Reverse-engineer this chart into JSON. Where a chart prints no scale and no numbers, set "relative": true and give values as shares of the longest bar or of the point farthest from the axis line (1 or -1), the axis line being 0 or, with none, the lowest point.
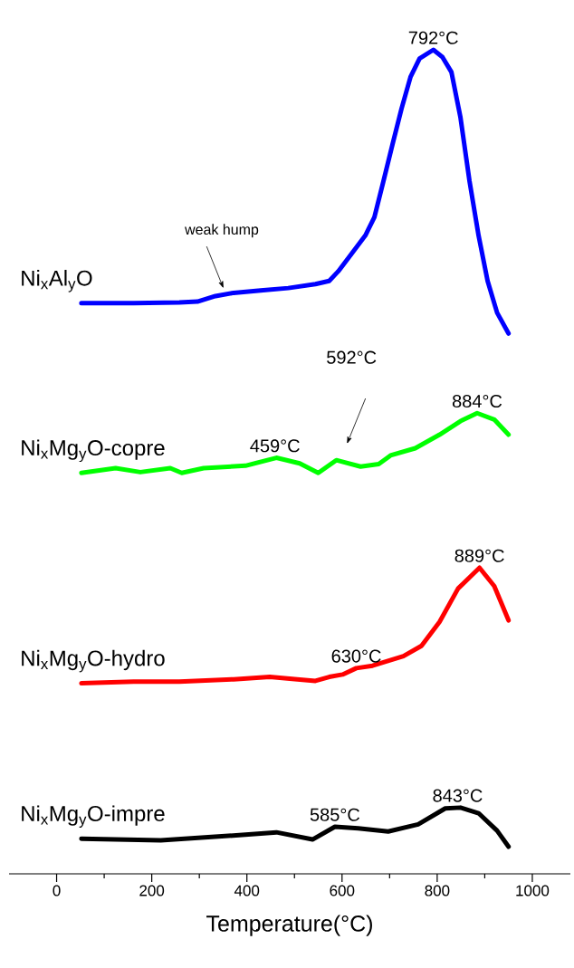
{
  "chart_data": {
    "type": "line",
    "relative": true,
    "xlabel": "Temperature(°C)",
    "xlim": [
      -100,
      1080
    ],
    "xticks": [
      0,
      200,
      400,
      600,
      800,
      1000
    ],
    "series": [
      {
        "name": "Ni$_{x}$Al$_{y}$O",
        "color": "#0000ff",
        "x": [
          52,
          105,
          162,
          258,
          296,
          334,
          372,
          429,
          487,
          544,
          573,
          592,
          620,
          649,
          668,
          687,
          706,
          725,
          744,
          763,
          792,
          811,
          830,
          849,
          868,
          887,
          906,
          926,
          950
        ],
        "values": [
          0.682,
          0.682,
          0.682,
          0.683,
          0.684,
          0.691,
          0.695,
          0.698,
          0.701,
          0.706,
          0.71,
          0.722,
          0.744,
          0.767,
          0.79,
          0.835,
          0.881,
          0.926,
          0.966,
          0.989,
          1.0,
          0.991,
          0.972,
          0.915,
          0.835,
          0.767,
          0.71,
          0.67,
          0.644
        ]
      },
      {
        "name": "Ni$_{x}$Mg$_{y}$O-copre",
        "color": "#00ff00",
        "x": [
          52,
          124,
          176,
          239,
          263,
          309,
          397,
          462,
          511,
          550,
          588,
          639,
          677,
          702,
          754,
          805,
          849,
          884,
          920,
          950
        ],
        "values": [
          0.469,
          0.475,
          0.47,
          0.475,
          0.469,
          0.475,
          0.478,
          0.488,
          0.481,
          0.469,
          0.485,
          0.477,
          0.48,
          0.491,
          0.5,
          0.517,
          0.534,
          0.544,
          0.536,
          0.517
        ]
      },
      {
        "name": "Ni$_{x}$Mg$_{y}$O-hydro",
        "color": "#ff0000",
        "x": [
          52,
          162,
          258,
          372,
          448,
          506,
          544,
          573,
          601,
          630,
          664,
          729,
          767,
          805,
          844,
          889,
          920,
          950
        ],
        "values": [
          0.205,
          0.207,
          0.207,
          0.21,
          0.213,
          0.21,
          0.208,
          0.213,
          0.216,
          0.224,
          0.227,
          0.239,
          0.252,
          0.282,
          0.324,
          0.35,
          0.327,
          0.284
        ]
      },
      {
        "name": "Ni$_{x}$Mg$_{y}$O-impre",
        "color": "#000000",
        "x": [
          52,
          219,
          347,
          462,
          538,
          585,
          634,
          697,
          760,
          817,
          849,
          887,
          926,
          950
        ],
        "values": [
          0.01,
          0.008,
          0.013,
          0.018,
          0.009,
          0.025,
          0.023,
          0.019,
          0.028,
          0.048,
          0.049,
          0.042,
          0.02,
          0.0
        ]
      }
    ],
    "annotations": [
      {
        "text": "792°C",
        "x": 792,
        "y": 1.0
      },
      "weak hump",
      {
        "text": "459°C",
        "x": 459,
        "y": 0.488
      },
      "592°C",
      {
        "text": "884°C",
        "x": 884,
        "y": 0.544
      },
      {
        "text": "889°C",
        "x": 889,
        "y": 0.35
      },
      {
        "text": "630°C",
        "x": 630,
        "y": 0.224
      },
      {
        "text": "585°C",
        "x": 585,
        "y": 0.025
      },
      {
        "text": "843°C",
        "x": 843,
        "y": 0.049
      }
    ]
  }
}
